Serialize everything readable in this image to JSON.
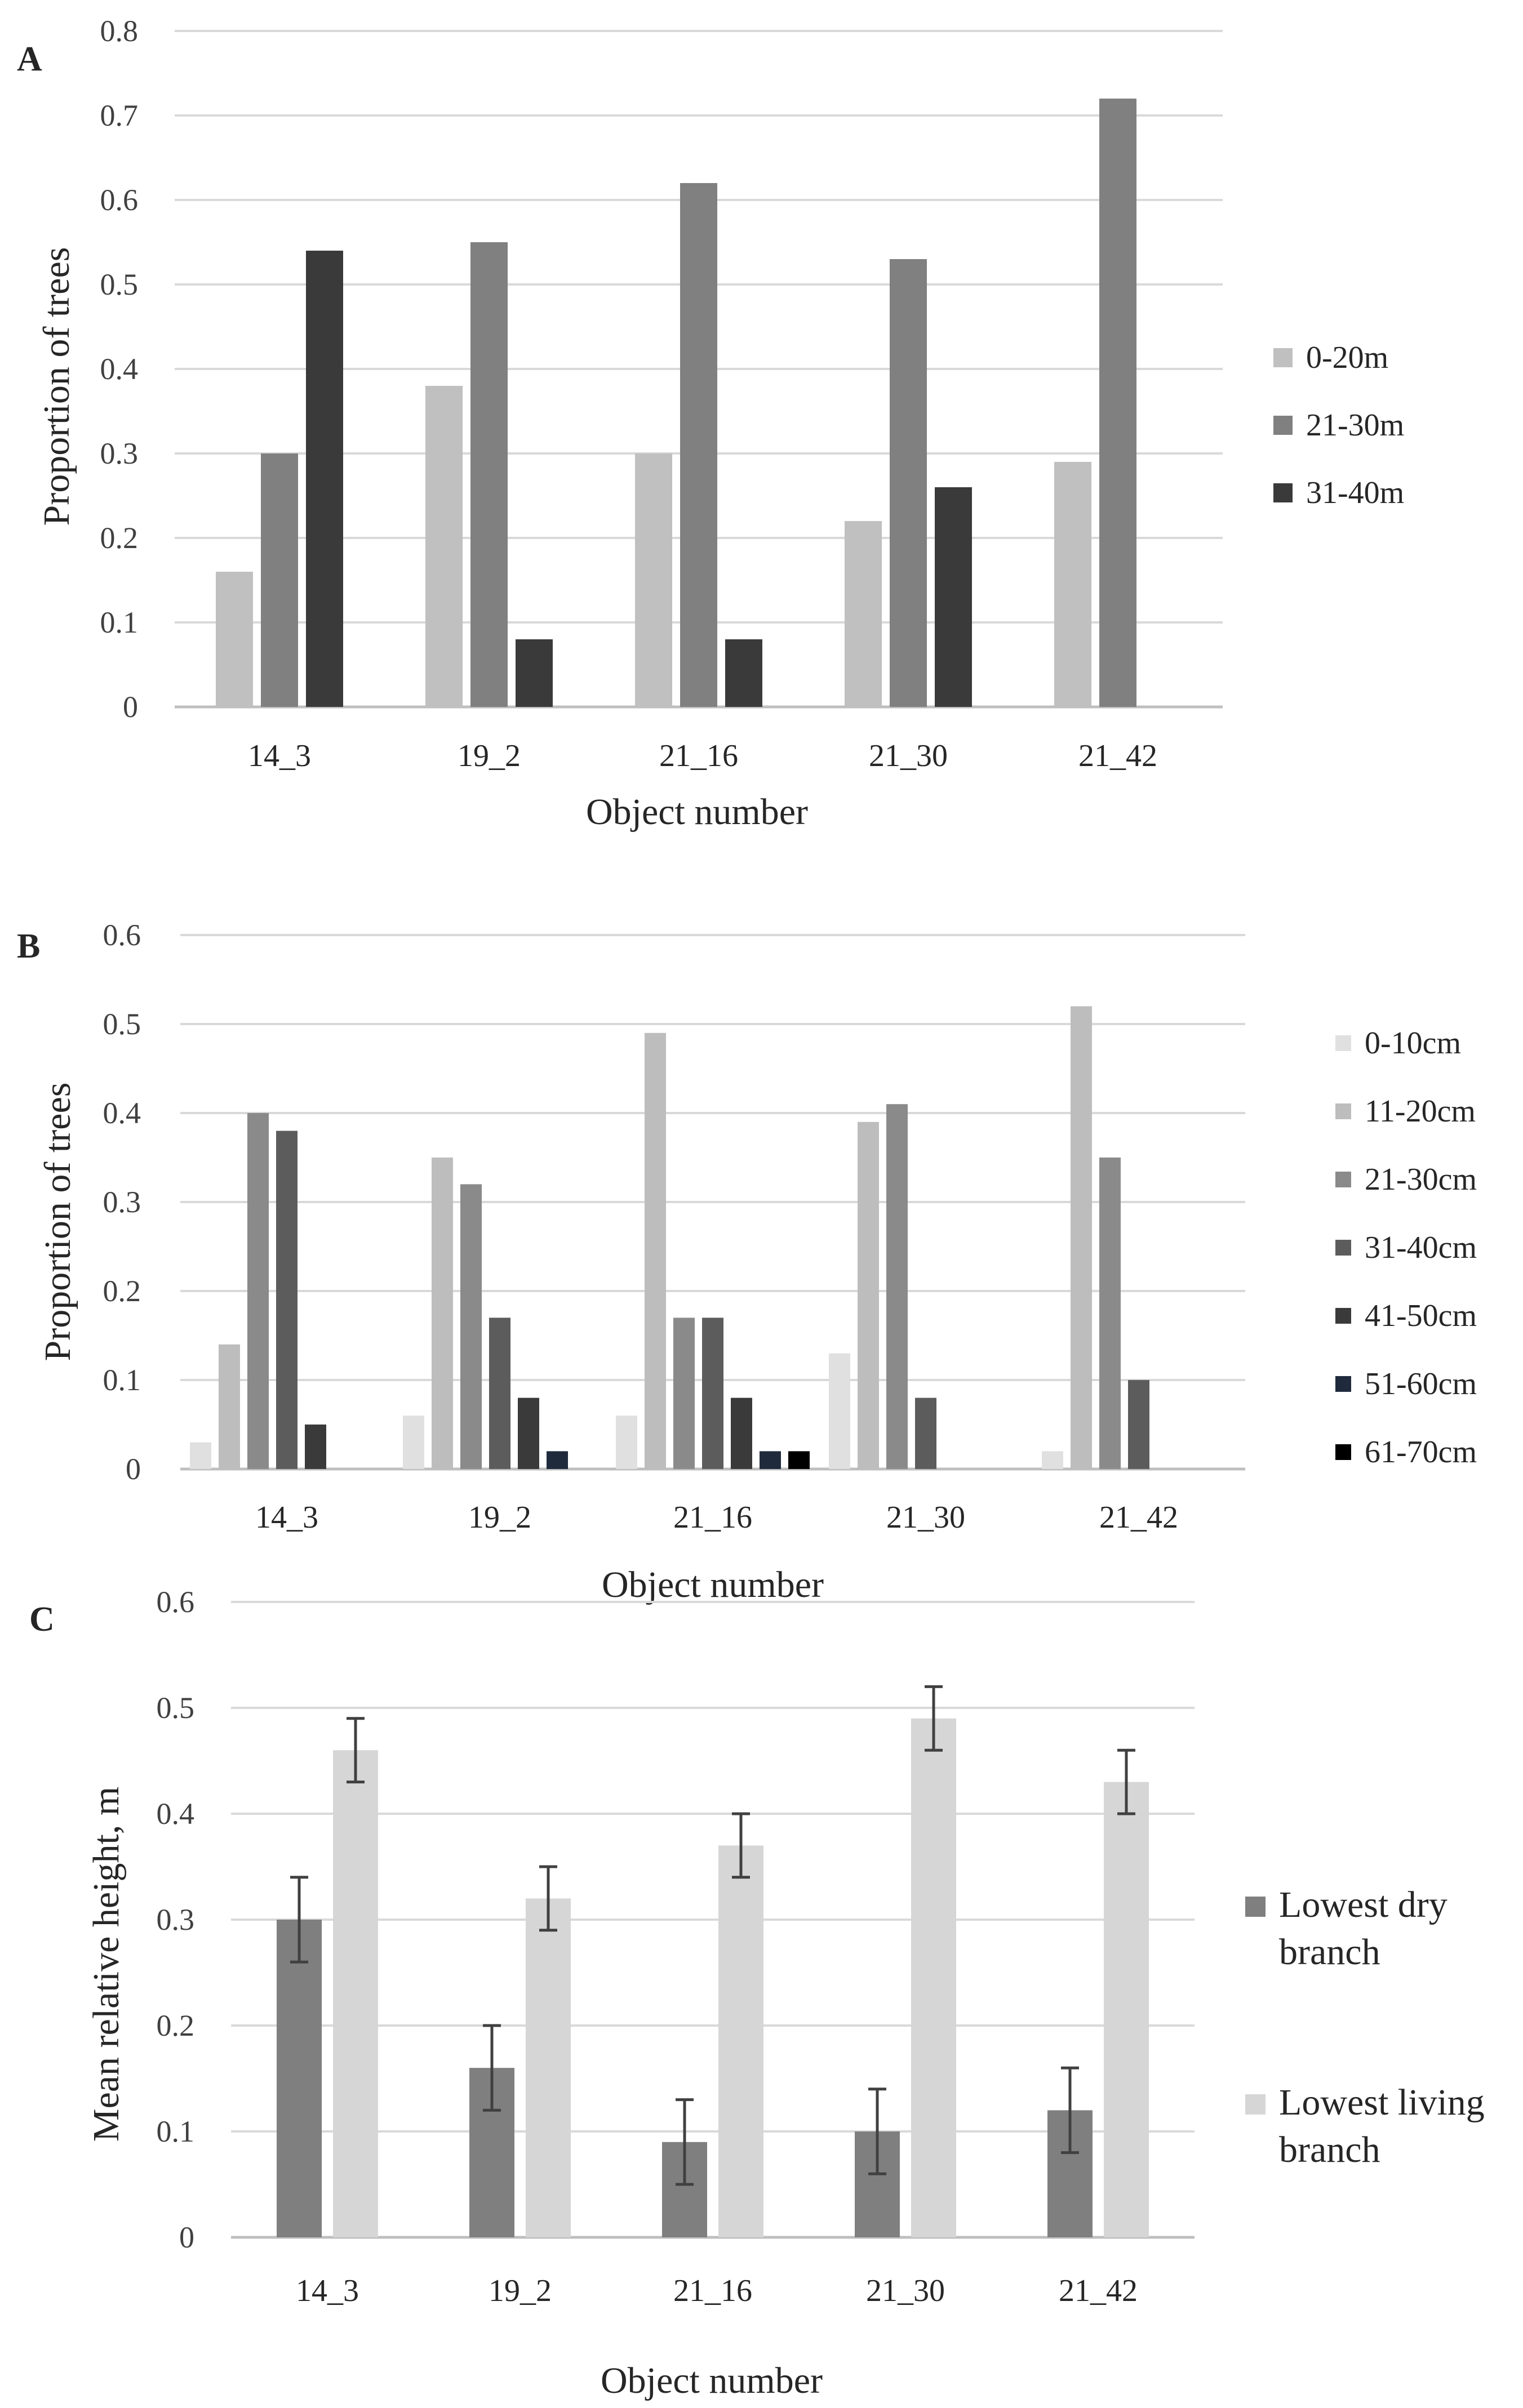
{
  "figure": {
    "panels": [
      {
        "letter": "A",
        "chart_data": {
          "type": "bar",
          "title": "",
          "xlabel": "Object number",
          "ylabel": "Proportion of trees",
          "ylim": [
            0,
            0.8
          ],
          "yticks": [
            "0",
            "0.1",
            "0.2",
            "0.3",
            "0.4",
            "0.5",
            "0.6",
            "0.7",
            "0.8"
          ],
          "categories": [
            "14_3",
            "19_2",
            "21_16",
            "21_30",
            "21_42"
          ],
          "legend_position": "right",
          "series": [
            {
              "name": "0-20m",
              "color": "#c0c0c0",
              "values": [
                0.16,
                0.38,
                0.3,
                0.22,
                0.29
              ]
            },
            {
              "name": "21-30m",
              "color": "#808080",
              "values": [
                0.3,
                0.55,
                0.62,
                0.53,
                0.72
              ]
            },
            {
              "name": "31-40m",
              "color": "#3a3a3a",
              "values": [
                0.54,
                0.08,
                0.08,
                0.26,
                0
              ]
            }
          ],
          "grid": true
        }
      },
      {
        "letter": "B",
        "chart_data": {
          "type": "bar",
          "title": "",
          "xlabel": "Object number",
          "ylabel": "Proportion of trees",
          "ylim": [
            0,
            0.6
          ],
          "yticks": [
            "0",
            "0.1",
            "0.2",
            "0.3",
            "0.4",
            "0.5",
            "0.6"
          ],
          "categories": [
            "14_3",
            "19_2",
            "21_16",
            "21_30",
            "21_42"
          ],
          "legend_position": "right",
          "series": [
            {
              "name": "0-10cm",
              "color": "#e0e0e0",
              "values": [
                0.03,
                0.06,
                0.06,
                0.13,
                0.02
              ]
            },
            {
              "name": "11-20cm",
              "color": "#bdbdbd",
              "values": [
                0.14,
                0.35,
                0.49,
                0.39,
                0.52
              ]
            },
            {
              "name": "21-30cm",
              "color": "#8a8a8a",
              "values": [
                0.4,
                0.32,
                0.17,
                0.41,
                0.35
              ]
            },
            {
              "name": "31-40cm",
              "color": "#5c5c5c",
              "values": [
                0.38,
                0.17,
                0.17,
                0.08,
                0.1
              ]
            },
            {
              "name": "41-50cm",
              "color": "#3a3a3a",
              "values": [
                0.05,
                0.08,
                0.08,
                0,
                0
              ]
            },
            {
              "name": "51-60cm",
              "color": "#1f2a3c",
              "values": [
                0,
                0.02,
                0.02,
                0,
                0
              ]
            },
            {
              "name": "61-70cm",
              "color": "#000000",
              "values": [
                0,
                0,
                0.02,
                0,
                0
              ]
            }
          ],
          "grid": true
        }
      },
      {
        "letter": "C",
        "chart_data": {
          "type": "bar",
          "title": "",
          "xlabel": "Object number",
          "ylabel": "Mean relative  height, m",
          "ylim": [
            0,
            0.6
          ],
          "yticks": [
            "0",
            "0.1",
            "0.2",
            "0.3",
            "0.4",
            "0.5",
            "0.6"
          ],
          "categories": [
            "14_3",
            "19_2",
            "21_16",
            "21_30",
            "21_42"
          ],
          "legend_position": "right",
          "series": [
            {
              "name_lines": [
                "Lowest dry",
                "branch"
              ],
              "color": "#7f7f7f",
              "values": [
                0.3,
                0.16,
                0.09,
                0.1,
                0.12
              ],
              "errors": [
                0.04,
                0.04,
                0.04,
                0.04,
                0.04
              ]
            },
            {
              "name_lines": [
                "Lowest living",
                "branch"
              ],
              "color": "#d6d6d6",
              "values": [
                0.46,
                0.32,
                0.37,
                0.49,
                0.43
              ],
              "errors": [
                0.03,
                0.03,
                0.03,
                0.03,
                0.03
              ]
            }
          ],
          "grid": true
        }
      }
    ]
  }
}
